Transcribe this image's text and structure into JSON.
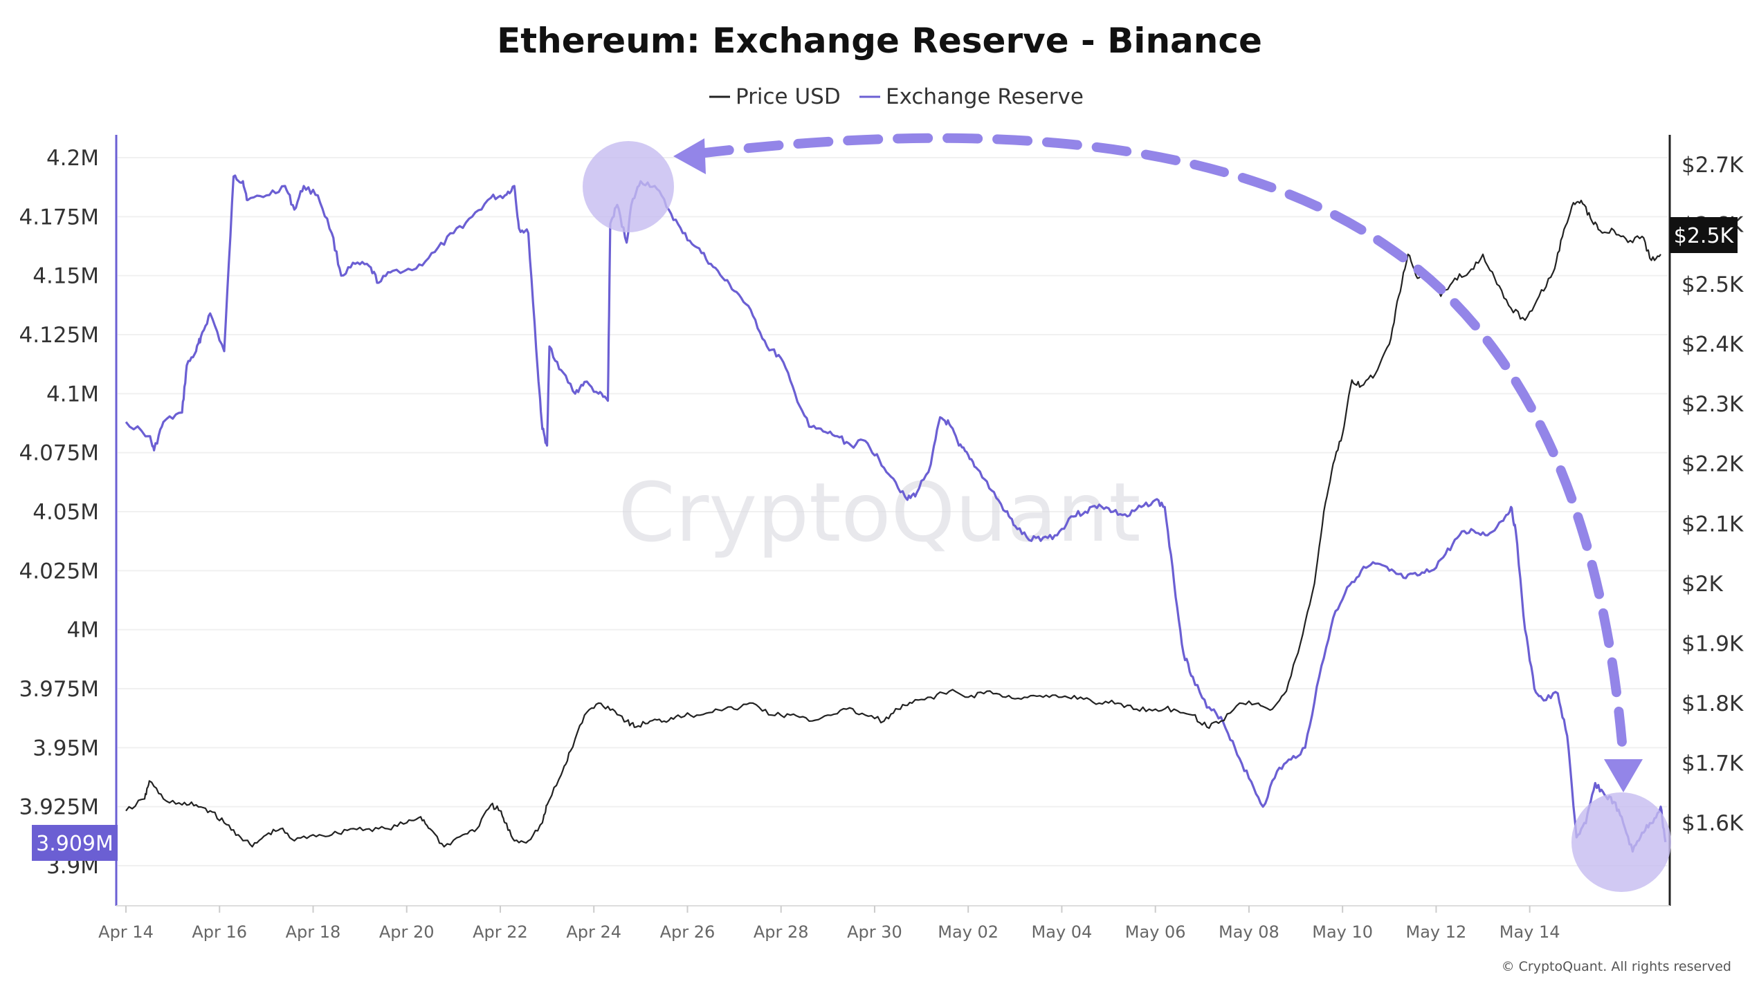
{
  "chart_data": {
    "type": "line",
    "title": "Ethereum: Exchange Reserve - Binance",
    "legend": [
      "Price USD",
      "Exchange Reserve"
    ],
    "legend_position": "top-center",
    "x_ticks": [
      "Apr 14",
      "Apr 16",
      "Apr 18",
      "Apr 20",
      "Apr 22",
      "Apr 24",
      "Apr 26",
      "Apr 28",
      "Apr 30",
      "May 02",
      "May 04",
      "May 06",
      "May 08",
      "May 10",
      "May 12",
      "May 14"
    ],
    "x_range_days": [
      0,
      32.8
    ],
    "left_axis": {
      "ticks": [
        "4.2M",
        "4.175M",
        "4.15M",
        "4.125M",
        "4.1M",
        "4.075M",
        "4.05M",
        "4.025M",
        "4M",
        "3.975M",
        "3.95M",
        "3.925M",
        "3.9M"
      ],
      "ylim": [
        3.88,
        4.2
      ]
    },
    "right_axis": {
      "ticks": [
        "$2.7K",
        "$2.6K",
        "$2.5K",
        "$2.4K",
        "$2.3K",
        "$2.2K",
        "$2.1K",
        "$2K",
        "$1.9K",
        "$1.8K",
        "$1.7K",
        "$1.6K"
      ],
      "ylim": [
        1.5,
        2.72
      ]
    },
    "current_reserve_label": "3.909M",
    "current_price_label": "$2.5K",
    "watermark": "CryptoQuant",
    "copyright": "© CryptoQuant. All rights reserved",
    "grid": true,
    "series": [
      {
        "name": "Exchange Reserve",
        "color": "#6b5fd3",
        "unit": "millions ETH",
        "points": [
          [
            0,
            4.088
          ],
          [
            0.5,
            4.082
          ],
          [
            0.6,
            4.076
          ],
          [
            0.8,
            4.088
          ],
          [
            1.2,
            4.092
          ],
          [
            1.3,
            4.112
          ],
          [
            1.5,
            4.118
          ],
          [
            1.6,
            4.124
          ],
          [
            1.8,
            4.134
          ],
          [
            2.1,
            4.118
          ],
          [
            2.3,
            4.192
          ],
          [
            2.5,
            4.19
          ],
          [
            2.6,
            4.182
          ],
          [
            3.0,
            4.184
          ],
          [
            3.4,
            4.188
          ],
          [
            3.6,
            4.178
          ],
          [
            3.8,
            4.188
          ],
          [
            4.1,
            4.184
          ],
          [
            4.4,
            4.168
          ],
          [
            4.6,
            4.15
          ],
          [
            4.9,
            4.155
          ],
          [
            5.2,
            4.154
          ],
          [
            5.4,
            4.147
          ],
          [
            5.7,
            4.152
          ],
          [
            6.2,
            4.153
          ],
          [
            6.6,
            4.16
          ],
          [
            7.0,
            4.168
          ],
          [
            7.4,
            4.175
          ],
          [
            7.8,
            4.183
          ],
          [
            8.1,
            4.184
          ],
          [
            8.3,
            4.188
          ],
          [
            8.4,
            4.17
          ],
          [
            8.6,
            4.168
          ],
          [
            8.8,
            4.11
          ],
          [
            8.9,
            4.085
          ],
          [
            9.0,
            4.078
          ],
          [
            9.05,
            4.12
          ],
          [
            9.3,
            4.11
          ],
          [
            9.6,
            4.1
          ],
          [
            9.8,
            4.105
          ],
          [
            10.1,
            4.1
          ],
          [
            10.3,
            4.097
          ],
          [
            10.35,
            4.172
          ],
          [
            10.5,
            4.18
          ],
          [
            10.7,
            4.164
          ],
          [
            10.8,
            4.18
          ],
          [
            11.0,
            4.19
          ],
          [
            11.3,
            4.188
          ],
          [
            11.6,
            4.178
          ],
          [
            11.9,
            4.168
          ],
          [
            12.2,
            4.162
          ],
          [
            12.5,
            4.155
          ],
          [
            12.8,
            4.148
          ],
          [
            13.1,
            4.142
          ],
          [
            13.4,
            4.133
          ],
          [
            13.7,
            4.12
          ],
          [
            14.0,
            4.115
          ],
          [
            14.3,
            4.1
          ],
          [
            14.6,
            4.086
          ],
          [
            14.9,
            4.084
          ],
          [
            15.2,
            4.082
          ],
          [
            15.5,
            4.078
          ],
          [
            15.8,
            4.08
          ],
          [
            16.1,
            4.072
          ],
          [
            16.4,
            4.064
          ],
          [
            16.7,
            4.055
          ],
          [
            16.9,
            4.058
          ],
          [
            17.2,
            4.07
          ],
          [
            17.4,
            4.09
          ],
          [
            17.6,
            4.087
          ],
          [
            17.8,
            4.078
          ],
          [
            18.0,
            4.074
          ],
          [
            18.2,
            4.068
          ],
          [
            18.5,
            4.059
          ],
          [
            18.8,
            4.05
          ],
          [
            19.0,
            4.044
          ],
          [
            19.3,
            4.038
          ],
          [
            19.6,
            4.039
          ],
          [
            19.9,
            4.04
          ],
          [
            20.2,
            4.048
          ],
          [
            20.5,
            4.05
          ],
          [
            20.8,
            4.053
          ],
          [
            21.1,
            4.05
          ],
          [
            21.4,
            4.048
          ],
          [
            21.7,
            4.052
          ],
          [
            22.0,
            4.055
          ],
          [
            22.2,
            4.052
          ],
          [
            22.4,
            4.02
          ],
          [
            22.6,
            3.99
          ],
          [
            22.8,
            3.98
          ],
          [
            23.1,
            3.967
          ],
          [
            23.4,
            3.963
          ],
          [
            23.7,
            3.95
          ],
          [
            24.0,
            3.937
          ],
          [
            24.3,
            3.925
          ],
          [
            24.6,
            3.94
          ],
          [
            24.9,
            3.945
          ],
          [
            25.2,
            3.95
          ],
          [
            25.5,
            3.98
          ],
          [
            25.8,
            4.005
          ],
          [
            26.1,
            4.018
          ],
          [
            26.4,
            4.025
          ],
          [
            26.7,
            4.028
          ],
          [
            27.0,
            4.025
          ],
          [
            27.3,
            4.022
          ],
          [
            27.6,
            4.023
          ],
          [
            27.9,
            4.025
          ],
          [
            28.2,
            4.032
          ],
          [
            28.5,
            4.04
          ],
          [
            28.8,
            4.042
          ],
          [
            29.1,
            4.04
          ],
          [
            29.4,
            4.046
          ],
          [
            29.6,
            4.052
          ],
          [
            29.7,
            4.042
          ],
          [
            29.9,
            4.0
          ],
          [
            30.1,
            3.975
          ],
          [
            30.3,
            3.97
          ],
          [
            30.6,
            3.973
          ],
          [
            30.8,
            3.955
          ],
          [
            31.0,
            3.912
          ],
          [
            31.2,
            3.918
          ],
          [
            31.4,
            3.935
          ],
          [
            31.6,
            3.93
          ],
          [
            31.8,
            3.927
          ],
          [
            32.0,
            3.918
          ],
          [
            32.2,
            3.906
          ],
          [
            32.4,
            3.914
          ],
          [
            32.6,
            3.918
          ],
          [
            32.8,
            3.925
          ],
          [
            32.9,
            3.91
          ]
        ]
      },
      {
        "name": "Price USD",
        "color": "#222222",
        "unit": "USD thousands",
        "points": [
          [
            0,
            1.62
          ],
          [
            0.4,
            1.64
          ],
          [
            0.5,
            1.67
          ],
          [
            0.8,
            1.64
          ],
          [
            1.2,
            1.63
          ],
          [
            1.5,
            1.63
          ],
          [
            1.8,
            1.62
          ],
          [
            2.1,
            1.6
          ],
          [
            2.4,
            1.58
          ],
          [
            2.7,
            1.56
          ],
          [
            3.0,
            1.58
          ],
          [
            3.3,
            1.59
          ],
          [
            3.6,
            1.57
          ],
          [
            4.0,
            1.58
          ],
          [
            4.4,
            1.58
          ],
          [
            4.8,
            1.59
          ],
          [
            5.2,
            1.59
          ],
          [
            5.6,
            1.59
          ],
          [
            6.0,
            1.6
          ],
          [
            6.3,
            1.61
          ],
          [
            6.5,
            1.59
          ],
          [
            6.8,
            1.56
          ],
          [
            7.2,
            1.58
          ],
          [
            7.5,
            1.59
          ],
          [
            7.8,
            1.63
          ],
          [
            8.0,
            1.62
          ],
          [
            8.1,
            1.6
          ],
          [
            8.3,
            1.57
          ],
          [
            8.6,
            1.57
          ],
          [
            8.9,
            1.6
          ],
          [
            9.0,
            1.63
          ],
          [
            9.3,
            1.68
          ],
          [
            9.5,
            1.72
          ],
          [
            9.8,
            1.78
          ],
          [
            10.1,
            1.8
          ],
          [
            10.4,
            1.79
          ],
          [
            10.7,
            1.77
          ],
          [
            10.9,
            1.76
          ],
          [
            11.2,
            1.77
          ],
          [
            11.5,
            1.77
          ],
          [
            11.8,
            1.78
          ],
          [
            12.2,
            1.78
          ],
          [
            12.6,
            1.79
          ],
          [
            13.0,
            1.79
          ],
          [
            13.4,
            1.8
          ],
          [
            13.8,
            1.78
          ],
          [
            14.2,
            1.78
          ],
          [
            14.6,
            1.77
          ],
          [
            15.0,
            1.78
          ],
          [
            15.4,
            1.79
          ],
          [
            15.8,
            1.78
          ],
          [
            16.2,
            1.77
          ],
          [
            16.5,
            1.79
          ],
          [
            16.8,
            1.8
          ],
          [
            17.2,
            1.81
          ],
          [
            17.6,
            1.82
          ],
          [
            18.0,
            1.81
          ],
          [
            18.4,
            1.82
          ],
          [
            18.8,
            1.81
          ],
          [
            19.2,
            1.81
          ],
          [
            19.6,
            1.81
          ],
          [
            20.0,
            1.81
          ],
          [
            20.4,
            1.81
          ],
          [
            20.8,
            1.8
          ],
          [
            21.2,
            1.8
          ],
          [
            21.6,
            1.79
          ],
          [
            22.0,
            1.79
          ],
          [
            22.4,
            1.79
          ],
          [
            22.8,
            1.78
          ],
          [
            23.1,
            1.76
          ],
          [
            23.4,
            1.77
          ],
          [
            23.8,
            1.8
          ],
          [
            24.2,
            1.8
          ],
          [
            24.5,
            1.79
          ],
          [
            24.8,
            1.82
          ],
          [
            25.1,
            1.9
          ],
          [
            25.4,
            2.0
          ],
          [
            25.6,
            2.12
          ],
          [
            25.8,
            2.2
          ],
          [
            26.0,
            2.25
          ],
          [
            26.2,
            2.34
          ],
          [
            26.4,
            2.33
          ],
          [
            26.7,
            2.35
          ],
          [
            27.0,
            2.4
          ],
          [
            27.2,
            2.48
          ],
          [
            27.4,
            2.55
          ],
          [
            27.6,
            2.51
          ],
          [
            27.8,
            2.52
          ],
          [
            28.1,
            2.48
          ],
          [
            28.4,
            2.51
          ],
          [
            28.7,
            2.52
          ],
          [
            29.0,
            2.55
          ],
          [
            29.3,
            2.5
          ],
          [
            29.6,
            2.46
          ],
          [
            29.9,
            2.44
          ],
          [
            30.2,
            2.48
          ],
          [
            30.5,
            2.52
          ],
          [
            30.7,
            2.58
          ],
          [
            30.9,
            2.63
          ],
          [
            31.1,
            2.64
          ],
          [
            31.3,
            2.61
          ],
          [
            31.5,
            2.59
          ],
          [
            31.8,
            2.59
          ],
          [
            32.1,
            2.57
          ],
          [
            32.4,
            2.58
          ],
          [
            32.6,
            2.54
          ],
          [
            32.8,
            2.55
          ]
        ]
      }
    ]
  }
}
